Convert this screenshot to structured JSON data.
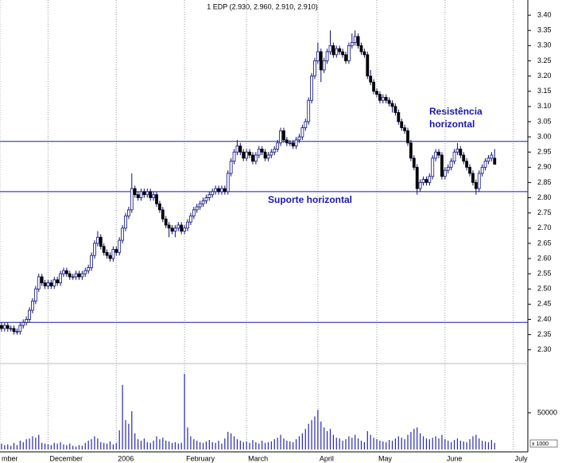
{
  "chart_data": {
    "type": "candlestick",
    "title": "1 EDP (2.930, 2.960, 2.910, 2.910)",
    "annotations": {
      "resistance": [
        "Resistência",
        "horizontal"
      ],
      "support": "Suporte horizontal"
    },
    "reference_lines": [
      2.985,
      2.82,
      2.39
    ],
    "reference_color": "#1a1aa8",
    "up_color": "#ffffff",
    "down_color": "#000000",
    "wick_color": "#10107a",
    "volume_color": "#2828a8",
    "grid": true,
    "xlim": [
      -0.5,
      169.7
    ],
    "xticks": [
      {
        "value": -0.5,
        "label": "mber"
      },
      {
        "value": 15,
        "label": "December"
      },
      {
        "value": 37,
        "label": "2006"
      },
      {
        "value": 59,
        "label": "February"
      },
      {
        "value": 79,
        "label": "March"
      },
      {
        "value": 102,
        "label": "April"
      },
      {
        "value": 121,
        "label": "May"
      },
      {
        "value": 143,
        "label": "June"
      },
      {
        "value": 165,
        "label": "July"
      }
    ],
    "ylim": [
      2.26,
      3.45
    ],
    "yticks": [
      {
        "value": 2.3,
        "label": "2.30"
      },
      {
        "value": 2.35,
        "label": "2.35"
      },
      {
        "value": 2.4,
        "label": "2.40"
      },
      {
        "value": 2.45,
        "label": "2.45"
      },
      {
        "value": 2.5,
        "label": "2.50"
      },
      {
        "value": 2.55,
        "label": "2.55"
      },
      {
        "value": 2.6,
        "label": "2.60"
      },
      {
        "value": 2.65,
        "label": "2.65"
      },
      {
        "value": 2.7,
        "label": "2.70"
      },
      {
        "value": 2.75,
        "label": "2.75"
      },
      {
        "value": 2.8,
        "label": "2.80"
      },
      {
        "value": 2.85,
        "label": "2.85"
      },
      {
        "value": 2.9,
        "label": "2.90"
      },
      {
        "value": 2.95,
        "label": "2.95"
      },
      {
        "value": 3.0,
        "label": "3.00"
      },
      {
        "value": 3.05,
        "label": "3.05"
      },
      {
        "value": 3.1,
        "label": "3.10"
      },
      {
        "value": 3.15,
        "label": "3.15"
      },
      {
        "value": 3.2,
        "label": "3.20"
      },
      {
        "value": 3.25,
        "label": "3.25"
      },
      {
        "value": 3.3,
        "label": "3.30"
      },
      {
        "value": 3.35,
        "label": "3.35"
      },
      {
        "value": 3.4,
        "label": "3.40"
      }
    ],
    "volume_ylim": [
      0,
      116000
    ],
    "volume_yticks": [
      50000
    ],
    "volume_unit": "x 1000",
    "ohlc": [
      [
        2.38,
        2.39,
        2.36,
        2.37
      ],
      [
        2.37,
        2.39,
        2.36,
        2.38
      ],
      [
        2.38,
        2.39,
        2.36,
        2.37
      ],
      [
        2.37,
        2.38,
        2.36,
        2.37
      ],
      [
        2.37,
        2.38,
        2.35,
        2.36
      ],
      [
        2.36,
        2.37,
        2.35,
        2.36
      ],
      [
        2.36,
        2.39,
        2.35,
        2.38
      ],
      [
        2.38,
        2.4,
        2.37,
        2.39
      ],
      [
        2.39,
        2.41,
        2.38,
        2.4
      ],
      [
        2.4,
        2.44,
        2.39,
        2.43
      ],
      [
        2.43,
        2.47,
        2.42,
        2.46
      ],
      [
        2.46,
        2.51,
        2.45,
        2.5
      ],
      [
        2.5,
        2.55,
        2.49,
        2.54
      ],
      [
        2.54,
        2.55,
        2.51,
        2.52
      ],
      [
        2.52,
        2.53,
        2.5,
        2.51
      ],
      [
        2.51,
        2.53,
        2.5,
        2.52
      ],
      [
        2.52,
        2.53,
        2.5,
        2.51
      ],
      [
        2.51,
        2.54,
        2.5,
        2.53
      ],
      [
        2.53,
        2.54,
        2.51,
        2.52
      ],
      [
        2.52,
        2.56,
        2.51,
        2.55
      ],
      [
        2.55,
        2.57,
        2.54,
        2.56
      ],
      [
        2.56,
        2.57,
        2.54,
        2.55
      ],
      [
        2.55,
        2.56,
        2.53,
        2.54
      ],
      [
        2.54,
        2.55,
        2.53,
        2.54
      ],
      [
        2.54,
        2.56,
        2.53,
        2.55
      ],
      [
        2.55,
        2.56,
        2.53,
        2.54
      ],
      [
        2.54,
        2.56,
        2.53,
        2.55
      ],
      [
        2.55,
        2.57,
        2.54,
        2.56
      ],
      [
        2.56,
        2.58,
        2.55,
        2.57
      ],
      [
        2.57,
        2.62,
        2.56,
        2.61
      ],
      [
        2.61,
        2.66,
        2.6,
        2.65
      ],
      [
        2.65,
        2.69,
        2.64,
        2.67
      ],
      [
        2.67,
        2.68,
        2.63,
        2.64
      ],
      [
        2.64,
        2.65,
        2.61,
        2.62
      ],
      [
        2.62,
        2.63,
        2.6,
        2.61
      ],
      [
        2.61,
        2.62,
        2.59,
        2.6
      ],
      [
        2.6,
        2.64,
        2.59,
        2.63
      ],
      [
        2.63,
        2.64,
        2.61,
        2.62
      ],
      [
        2.62,
        2.67,
        2.61,
        2.66
      ],
      [
        2.66,
        2.71,
        2.65,
        2.7
      ],
      [
        2.7,
        2.75,
        2.69,
        2.74
      ],
      [
        2.74,
        2.77,
        2.73,
        2.76
      ],
      [
        2.76,
        2.88,
        2.75,
        2.83
      ],
      [
        2.83,
        2.84,
        2.8,
        2.81
      ],
      [
        2.81,
        2.82,
        2.79,
        2.8
      ],
      [
        2.8,
        2.83,
        2.79,
        2.82
      ],
      [
        2.82,
        2.83,
        2.8,
        2.81
      ],
      [
        2.81,
        2.83,
        2.8,
        2.82
      ],
      [
        2.82,
        2.83,
        2.79,
        2.8
      ],
      [
        2.8,
        2.82,
        2.79,
        2.81
      ],
      [
        2.81,
        2.82,
        2.77,
        2.78
      ],
      [
        2.78,
        2.79,
        2.75,
        2.76
      ],
      [
        2.76,
        2.77,
        2.72,
        2.73
      ],
      [
        2.73,
        2.74,
        2.7,
        2.71
      ],
      [
        2.71,
        2.72,
        2.67,
        2.7
      ],
      [
        2.7,
        2.71,
        2.68,
        2.69
      ],
      [
        2.69,
        2.71,
        2.67,
        2.7
      ],
      [
        2.7,
        2.72,
        2.69,
        2.71
      ],
      [
        2.71,
        2.72,
        2.68,
        2.69
      ],
      [
        2.69,
        2.71,
        2.68,
        2.7
      ],
      [
        2.7,
        2.73,
        2.69,
        2.72
      ],
      [
        2.72,
        2.75,
        2.71,
        2.74
      ],
      [
        2.74,
        2.77,
        2.73,
        2.76
      ],
      [
        2.76,
        2.78,
        2.75,
        2.77
      ],
      [
        2.77,
        2.79,
        2.76,
        2.78
      ],
      [
        2.78,
        2.8,
        2.77,
        2.79
      ],
      [
        2.79,
        2.81,
        2.78,
        2.8
      ],
      [
        2.8,
        2.82,
        2.79,
        2.81
      ],
      [
        2.81,
        2.83,
        2.8,
        2.82
      ],
      [
        2.82,
        2.84,
        2.81,
        2.83
      ],
      [
        2.83,
        2.84,
        2.81,
        2.82
      ],
      [
        2.82,
        2.84,
        2.81,
        2.83
      ],
      [
        2.83,
        2.84,
        2.81,
        2.82
      ],
      [
        2.82,
        2.89,
        2.81,
        2.88
      ],
      [
        2.88,
        2.93,
        2.87,
        2.92
      ],
      [
        2.92,
        2.96,
        2.91,
        2.95
      ],
      [
        2.95,
        2.99,
        2.94,
        2.97
      ],
      [
        2.97,
        2.98,
        2.94,
        2.95
      ],
      [
        2.95,
        2.96,
        2.92,
        2.93
      ],
      [
        2.93,
        2.96,
        2.92,
        2.95
      ],
      [
        2.95,
        2.96,
        2.93,
        2.94
      ],
      [
        2.94,
        2.95,
        2.91,
        2.92
      ],
      [
        2.92,
        2.95,
        2.91,
        2.94
      ],
      [
        2.94,
        2.97,
        2.93,
        2.96
      ],
      [
        2.96,
        2.97,
        2.94,
        2.95
      ],
      [
        2.95,
        2.96,
        2.92,
        2.93
      ],
      [
        2.93,
        2.95,
        2.92,
        2.94
      ],
      [
        2.94,
        2.96,
        2.93,
        2.95
      ],
      [
        2.95,
        2.97,
        2.94,
        2.96
      ],
      [
        2.96,
        2.99,
        2.95,
        2.98
      ],
      [
        2.98,
        3.03,
        2.97,
        3.02
      ],
      [
        3.02,
        3.03,
        2.98,
        2.99
      ],
      [
        2.99,
        3.0,
        2.97,
        2.98
      ],
      [
        2.98,
        2.99,
        2.97,
        2.98
      ],
      [
        2.98,
        2.99,
        2.96,
        2.97
      ],
      [
        2.97,
        3.0,
        2.96,
        2.99
      ],
      [
        2.99,
        3.01,
        2.98,
        3.0
      ],
      [
        3.0,
        3.04,
        2.99,
        3.03
      ],
      [
        3.03,
        3.06,
        3.02,
        3.05
      ],
      [
        3.05,
        3.13,
        3.04,
        3.12
      ],
      [
        3.12,
        3.21,
        3.11,
        3.2
      ],
      [
        3.2,
        3.26,
        3.19,
        3.25
      ],
      [
        3.25,
        3.31,
        3.24,
        3.28
      ],
      [
        3.28,
        3.29,
        3.18,
        3.22
      ],
      [
        3.22,
        3.26,
        3.21,
        3.25
      ],
      [
        3.25,
        3.29,
        3.24,
        3.28
      ],
      [
        3.28,
        3.35,
        3.27,
        3.3
      ],
      [
        3.3,
        3.31,
        3.26,
        3.27
      ],
      [
        3.27,
        3.3,
        3.26,
        3.29
      ],
      [
        3.29,
        3.3,
        3.27,
        3.28
      ],
      [
        3.28,
        3.29,
        3.26,
        3.27
      ],
      [
        3.27,
        3.28,
        3.24,
        3.25
      ],
      [
        3.25,
        3.31,
        3.24,
        3.3
      ],
      [
        3.3,
        3.34,
        3.29,
        3.31
      ],
      [
        3.31,
        3.35,
        3.3,
        3.33
      ],
      [
        3.33,
        3.34,
        3.29,
        3.3
      ],
      [
        3.3,
        3.31,
        3.27,
        3.28
      ],
      [
        3.28,
        3.29,
        3.26,
        3.27
      ],
      [
        3.27,
        3.28,
        3.19,
        3.2
      ],
      [
        3.2,
        3.22,
        3.17,
        3.18
      ],
      [
        3.18,
        3.19,
        3.14,
        3.15
      ],
      [
        3.15,
        3.16,
        3.13,
        3.14
      ],
      [
        3.14,
        3.15,
        3.11,
        3.12
      ],
      [
        3.12,
        3.14,
        3.11,
        3.13
      ],
      [
        3.13,
        3.14,
        3.11,
        3.12
      ],
      [
        3.12,
        3.13,
        3.1,
        3.11
      ],
      [
        3.11,
        3.12,
        3.08,
        3.1
      ],
      [
        3.1,
        3.11,
        3.07,
        3.08
      ],
      [
        3.08,
        3.09,
        3.04,
        3.05
      ],
      [
        3.05,
        3.06,
        3.02,
        3.03
      ],
      [
        3.03,
        3.04,
        3.01,
        3.02
      ],
      [
        3.02,
        3.03,
        2.97,
        2.98
      ],
      [
        2.98,
        2.99,
        2.92,
        2.93
      ],
      [
        2.93,
        2.94,
        2.89,
        2.9
      ],
      [
        2.9,
        2.91,
        2.81,
        2.83
      ],
      [
        2.83,
        2.86,
        2.82,
        2.85
      ],
      [
        2.85,
        2.87,
        2.84,
        2.86
      ],
      [
        2.86,
        2.87,
        2.84,
        2.85
      ],
      [
        2.85,
        2.88,
        2.84,
        2.87
      ],
      [
        2.87,
        2.94,
        2.86,
        2.93
      ],
      [
        2.93,
        2.96,
        2.92,
        2.95
      ],
      [
        2.95,
        2.96,
        2.93,
        2.94
      ],
      [
        2.94,
        2.95,
        2.86,
        2.87
      ],
      [
        2.87,
        2.9,
        2.86,
        2.89
      ],
      [
        2.89,
        2.91,
        2.88,
        2.9
      ],
      [
        2.9,
        2.93,
        2.89,
        2.92
      ],
      [
        2.92,
        2.96,
        2.91,
        2.95
      ],
      [
        2.95,
        2.98,
        2.94,
        2.96
      ],
      [
        2.96,
        2.97,
        2.93,
        2.94
      ],
      [
        2.94,
        2.95,
        2.91,
        2.92
      ],
      [
        2.92,
        2.93,
        2.89,
        2.9
      ],
      [
        2.9,
        2.91,
        2.87,
        2.88
      ],
      [
        2.88,
        2.89,
        2.84,
        2.85
      ],
      [
        2.85,
        2.86,
        2.81,
        2.83
      ],
      [
        2.83,
        2.89,
        2.82,
        2.88
      ],
      [
        2.88,
        2.91,
        2.87,
        2.9
      ],
      [
        2.9,
        2.93,
        2.89,
        2.92
      ],
      [
        2.92,
        2.94,
        2.91,
        2.93
      ],
      [
        2.93,
        2.95,
        2.92,
        2.94
      ],
      [
        2.93,
        2.96,
        2.91,
        2.91
      ]
    ],
    "volume": [
      8000,
      6000,
      7000,
      5000,
      9000,
      6000,
      12000,
      10000,
      14000,
      15000,
      18000,
      16000,
      20000,
      9000,
      8000,
      7000,
      6000,
      9000,
      8000,
      10000,
      7000,
      6000,
      8000,
      5000,
      4000,
      6000,
      5000,
      9000,
      12000,
      14000,
      18000,
      15000,
      10000,
      9000,
      8000,
      11000,
      7000,
      9000,
      26000,
      88000,
      40000,
      35000,
      52000,
      22000,
      14000,
      12000,
      15000,
      10000,
      9000,
      12000,
      18000,
      14000,
      16000,
      12000,
      11000,
      9000,
      10000,
      8000,
      9000,
      103000,
      30000,
      18000,
      14000,
      12000,
      10000,
      9000,
      11000,
      13000,
      10000,
      9000,
      12000,
      8000,
      15000,
      24000,
      22000,
      18000,
      14000,
      12000,
      10000,
      11000,
      9000,
      13000,
      10000,
      8000,
      12000,
      9000,
      10000,
      11000,
      14000,
      16000,
      20000,
      15000,
      12000,
      11000,
      10000,
      14000,
      18000,
      22000,
      28000,
      35000,
      40000,
      45000,
      54000,
      38000,
      30000,
      25000,
      28000,
      20000,
      16000,
      15000,
      12000,
      14000,
      18000,
      16000,
      20000,
      15000,
      12000,
      10000,
      25000,
      20000,
      16000,
      14000,
      12000,
      11000,
      10000,
      13000,
      12000,
      15000,
      18000,
      16000,
      14000,
      20000,
      24000,
      28000,
      30000,
      22000,
      18000,
      15000,
      14000,
      16000,
      18000,
      15000,
      20000,
      14000,
      12000,
      10000,
      13000,
      15000,
      12000,
      11000,
      10000,
      14000,
      18000,
      20000,
      15000,
      12000,
      11000,
      10000,
      13000,
      9000
    ]
  }
}
